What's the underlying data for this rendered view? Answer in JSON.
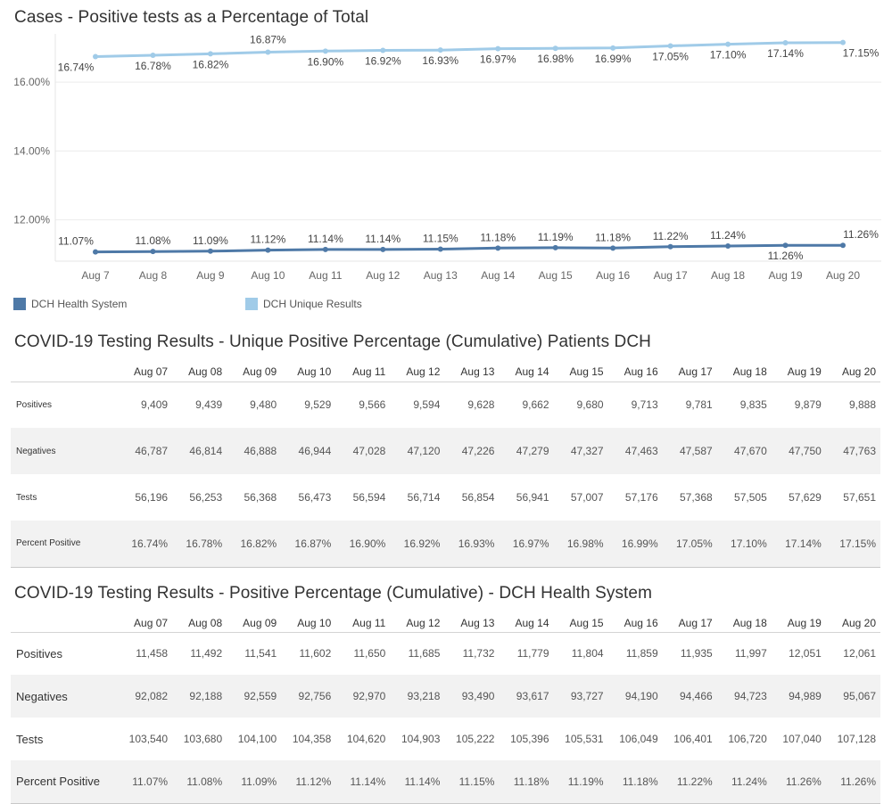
{
  "chart_data": {
    "type": "line",
    "title": "Cases - Positive tests as a Percentage of Total",
    "categories": [
      "Aug 7",
      "Aug 8",
      "Aug 9",
      "Aug 10",
      "Aug 11",
      "Aug 12",
      "Aug 13",
      "Aug 14",
      "Aug 15",
      "Aug 16",
      "Aug 17",
      "Aug 18",
      "Aug 19",
      "Aug 20"
    ],
    "ylim": [
      10.8,
      17.4
    ],
    "yticks": [
      "12.00%",
      "14.00%",
      "16.00%"
    ],
    "ytick_values": [
      12,
      14,
      16
    ],
    "grid": true,
    "legend_position": "bottom-left",
    "series": [
      {
        "name": "DCH Health System",
        "color": "#4e79a7",
        "values": [
          11.07,
          11.08,
          11.09,
          11.12,
          11.14,
          11.14,
          11.15,
          11.18,
          11.19,
          11.18,
          11.22,
          11.24,
          11.26,
          11.26
        ],
        "labels": [
          "11.07%",
          "11.08%",
          "11.09%",
          "11.12%",
          "11.14%",
          "11.14%",
          "11.15%",
          "11.18%",
          "11.19%",
          "11.18%",
          "11.22%",
          "11.24%",
          "11.26%",
          "11.26%"
        ]
      },
      {
        "name": "DCH Unique Results",
        "color": "#a0cbe8",
        "values": [
          16.74,
          16.78,
          16.82,
          16.87,
          16.9,
          16.92,
          16.93,
          16.97,
          16.98,
          16.99,
          17.05,
          17.1,
          17.14,
          17.15
        ],
        "labels": [
          "16.74%",
          "16.78%",
          "16.82%",
          "16.87%",
          "16.90%",
          "16.92%",
          "16.93%",
          "16.97%",
          "16.98%",
          "16.99%",
          "17.05%",
          "17.10%",
          "17.14%",
          "17.15%"
        ]
      }
    ]
  },
  "legend": [
    {
      "label": "DCH Health System",
      "color": "#4e79a7"
    },
    {
      "label": "DCH Unique Results",
      "color": "#a0cbe8"
    }
  ],
  "table_unique": {
    "title": "COVID-19 Testing Results - Unique Positive Percentage (Cumulative) Patients DCH",
    "columns": [
      "Aug 07",
      "Aug 08",
      "Aug 09",
      "Aug 10",
      "Aug 11",
      "Aug 12",
      "Aug 13",
      "Aug 14",
      "Aug 15",
      "Aug 16",
      "Aug 17",
      "Aug 18",
      "Aug 19",
      "Aug 20"
    ],
    "rows": [
      {
        "label": "Positives",
        "values": [
          "9,409",
          "9,439",
          "9,480",
          "9,529",
          "9,566",
          "9,594",
          "9,628",
          "9,662",
          "9,680",
          "9,713",
          "9,781",
          "9,835",
          "9,879",
          "9,888"
        ]
      },
      {
        "label": "Negatives",
        "values": [
          "46,787",
          "46,814",
          "46,888",
          "46,944",
          "47,028",
          "47,120",
          "47,226",
          "47,279",
          "47,327",
          "47,463",
          "47,587",
          "47,670",
          "47,750",
          "47,763"
        ]
      },
      {
        "label": "Tests",
        "values": [
          "56,196",
          "56,253",
          "56,368",
          "56,473",
          "56,594",
          "56,714",
          "56,854",
          "56,941",
          "57,007",
          "57,176",
          "57,368",
          "57,505",
          "57,629",
          "57,651"
        ]
      },
      {
        "label": "Percent Positive",
        "values": [
          "16.74%",
          "16.78%",
          "16.82%",
          "16.87%",
          "16.90%",
          "16.92%",
          "16.93%",
          "16.97%",
          "16.98%",
          "16.99%",
          "17.05%",
          "17.10%",
          "17.14%",
          "17.15%"
        ]
      }
    ]
  },
  "table_system": {
    "title": "COVID-19 Testing Results - Positive Percentage (Cumulative) - DCH Health System",
    "columns": [
      "Aug 07",
      "Aug 08",
      "Aug 09",
      "Aug 10",
      "Aug 11",
      "Aug 12",
      "Aug 13",
      "Aug 14",
      "Aug 15",
      "Aug 16",
      "Aug 17",
      "Aug 18",
      "Aug 19",
      "Aug 20"
    ],
    "rows": [
      {
        "label": "Positives",
        "values": [
          "11,458",
          "11,492",
          "11,541",
          "11,602",
          "11,650",
          "11,685",
          "11,732",
          "11,779",
          "11,804",
          "11,859",
          "11,935",
          "11,997",
          "12,051",
          "12,061"
        ]
      },
      {
        "label": "Negatives",
        "values": [
          "92,082",
          "92,188",
          "92,559",
          "92,756",
          "92,970",
          "93,218",
          "93,490",
          "93,617",
          "93,727",
          "94,190",
          "94,466",
          "94,723",
          "94,989",
          "95,067"
        ]
      },
      {
        "label": "Tests",
        "values": [
          "103,540",
          "103,680",
          "104,100",
          "104,358",
          "104,620",
          "104,903",
          "105,222",
          "105,396",
          "105,531",
          "106,049",
          "106,401",
          "106,720",
          "107,040",
          "107,128"
        ]
      },
      {
        "label": "Percent Positive",
        "values": [
          "11.07%",
          "11.08%",
          "11.09%",
          "11.12%",
          "11.14%",
          "11.14%",
          "11.15%",
          "11.18%",
          "11.19%",
          "11.18%",
          "11.22%",
          "11.24%",
          "11.26%",
          "11.26%"
        ]
      }
    ]
  }
}
